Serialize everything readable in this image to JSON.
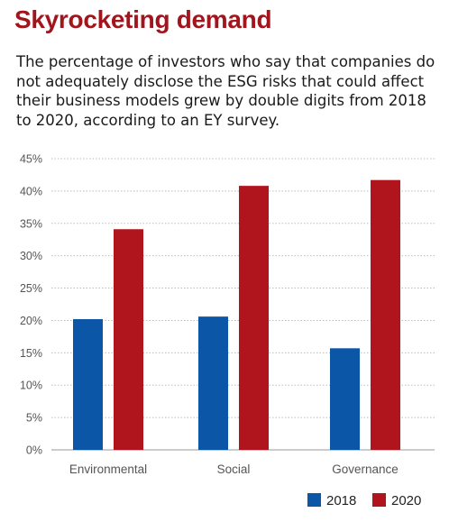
{
  "colors": {
    "title": "#a3151c",
    "series_2018": "#0b56a6",
    "series_2020": "#b0151d",
    "grid": "#bdbdbd"
  },
  "chart_data": {
    "type": "bar",
    "title": "Skyrocketing demand",
    "subtitle": "The percentage of investors who say that companies do not adequately disclose the ESG risks that could affect their business models grew by double digits from 2018 to 2020, according to an EY survey.",
    "categories": [
      "Environmental",
      "Social",
      "Governance"
    ],
    "series": [
      {
        "name": "2018",
        "values": [
          20.2,
          20.6,
          15.7
        ]
      },
      {
        "name": "2020",
        "values": [
          34.1,
          40.8,
          41.7
        ]
      }
    ],
    "ylim": [
      0,
      45
    ],
    "yticks": [
      "0%",
      "5%",
      "10%",
      "15%",
      "20%",
      "25%",
      "30%",
      "35%",
      "40%",
      "45%"
    ],
    "grid": true,
    "legend": "bottom-right"
  }
}
